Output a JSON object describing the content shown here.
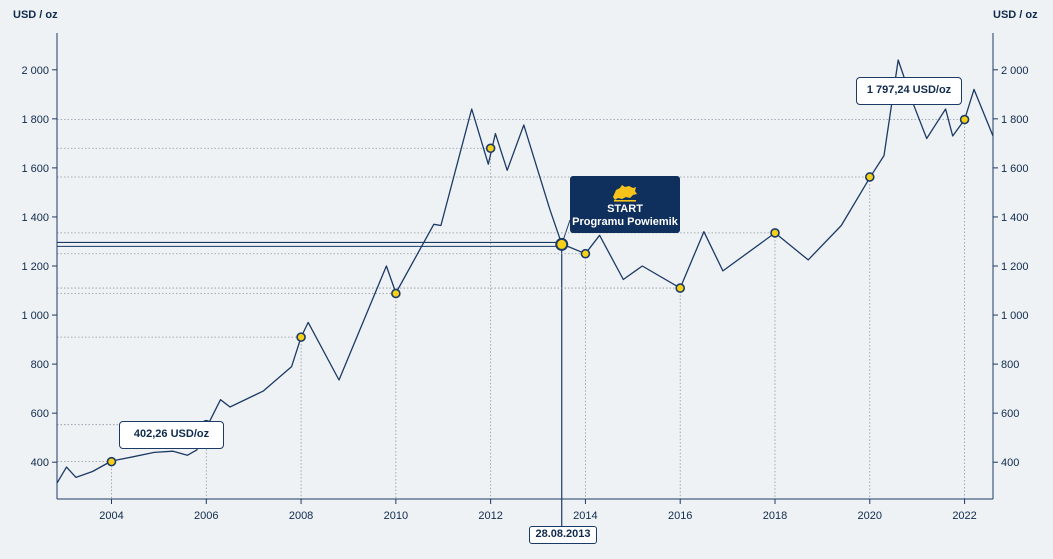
{
  "chart_data": {
    "type": "line",
    "title": "",
    "y_unit_left": "USD / oz",
    "y_unit_right": "USD / oz",
    "xlim": [
      2002.85,
      2022.6
    ],
    "ylim": [
      250,
      2150
    ],
    "x_ticks": [
      2004,
      2006,
      2008,
      2010,
      2012,
      2014,
      2016,
      2018,
      2020,
      2022
    ],
    "x_tick_labels": [
      "2004",
      "2006",
      "2008",
      "2010",
      "2012",
      "2014",
      "2016",
      "2018",
      "2020",
      "2022"
    ],
    "y_ticks": [
      400,
      600,
      800,
      1000,
      1200,
      1400,
      1600,
      1800,
      2000
    ],
    "y_tick_labels": [
      "400",
      "600",
      "800",
      "1 000",
      "1 200",
      "1 400",
      "1 600",
      "1 800",
      "2 000"
    ],
    "grid": "dotted guides from markers",
    "series": [
      {
        "color": "#1b3a66",
        "points": [
          [
            2002.85,
            315
          ],
          [
            2003.05,
            380
          ],
          [
            2003.25,
            338
          ],
          [
            2003.6,
            362
          ],
          [
            2004.0,
            405
          ],
          [
            2004.4,
            420
          ],
          [
            2004.9,
            440
          ],
          [
            2005.3,
            445
          ],
          [
            2005.6,
            428
          ],
          [
            2005.8,
            450
          ],
          [
            2006.0,
            540
          ],
          [
            2006.3,
            655
          ],
          [
            2006.5,
            625
          ],
          [
            2007.2,
            690
          ],
          [
            2007.8,
            790
          ],
          [
            2008.0,
            910
          ],
          [
            2008.15,
            970
          ],
          [
            2008.8,
            735
          ],
          [
            2009.8,
            1200
          ],
          [
            2010.0,
            1090
          ],
          [
            2010.8,
            1370
          ],
          [
            2010.95,
            1365
          ],
          [
            2011.6,
            1840
          ],
          [
            2011.95,
            1615
          ],
          [
            2012.1,
            1740
          ],
          [
            2012.35,
            1590
          ],
          [
            2012.7,
            1775
          ],
          [
            2013.25,
            1430
          ],
          [
            2013.5,
            1290
          ],
          [
            2014.0,
            1250
          ],
          [
            2014.3,
            1325
          ],
          [
            2014.8,
            1145
          ],
          [
            2015.2,
            1200
          ],
          [
            2016.0,
            1110
          ],
          [
            2016.5,
            1340
          ],
          [
            2016.9,
            1180
          ],
          [
            2018.0,
            1335
          ],
          [
            2018.7,
            1225
          ],
          [
            2019.4,
            1365
          ],
          [
            2020.0,
            1560
          ],
          [
            2020.3,
            1650
          ],
          [
            2020.6,
            2040
          ],
          [
            2020.9,
            1870
          ],
          [
            2021.2,
            1720
          ],
          [
            2021.6,
            1840
          ],
          [
            2021.75,
            1730
          ],
          [
            2022.0,
            1797
          ],
          [
            2022.2,
            1920
          ],
          [
            2022.6,
            1730
          ]
        ]
      }
    ],
    "markers": [
      {
        "x": 2004.0,
        "y": 402.26,
        "label": "402,26 USD/oz"
      },
      {
        "x": 2006.0,
        "y": 553
      },
      {
        "x": 2008.0,
        "y": 910
      },
      {
        "x": 2010.0,
        "y": 1088
      },
      {
        "x": 2012.0,
        "y": 1680
      },
      {
        "x": 2013.5,
        "y": 1288,
        "highlight": true
      },
      {
        "x": 2014.0,
        "y": 1250
      },
      {
        "x": 2016.0,
        "y": 1110
      },
      {
        "x": 2018.0,
        "y": 1335
      },
      {
        "x": 2020.0,
        "y": 1563
      },
      {
        "x": 2022.0,
        "y": 1797.24,
        "label": "1 797,24 USD/oz"
      }
    ],
    "annotations": {
      "start_line1": "START",
      "start_line2": "Programu Powiemik",
      "start_date": "28.08.2013"
    },
    "colors": {
      "line": "#1b3a66",
      "marker_fill": "#f7d117",
      "box": "#0f2f5c",
      "background": "#eff2f4"
    }
  }
}
